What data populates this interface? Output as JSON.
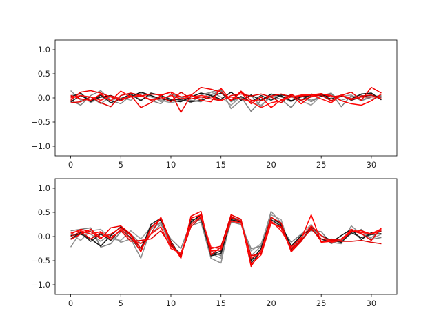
{
  "chart_data": [
    {
      "type": "line",
      "xlim": [
        -1.55,
        32.55
      ],
      "ylim": [
        -1.2,
        1.2
      ],
      "xticks": [
        0,
        5,
        10,
        15,
        20,
        25,
        30
      ],
      "yticks": [
        -1.0,
        -0.5,
        0.0,
        0.5,
        1.0
      ],
      "xtick_labels": [
        "0",
        "5",
        "10",
        "15",
        "20",
        "25",
        "30"
      ],
      "ytick_labels": [
        "−1.0",
        "−0.5",
        "0.0",
        "0.5",
        "1.0"
      ],
      "x": [
        0,
        1,
        2,
        3,
        4,
        5,
        6,
        7,
        8,
        9,
        10,
        11,
        12,
        13,
        14,
        15,
        16,
        17,
        18,
        19,
        20,
        21,
        22,
        23,
        24,
        25,
        26,
        27,
        28,
        29,
        30,
        31
      ],
      "series": [
        {
          "color": "#808080",
          "values": [
            0.15,
            -0.05,
            0.02,
            -0.12,
            0.03,
            -0.05,
            0.08,
            -0.04,
            0.06,
            -0.08,
            0.05,
            0.01,
            -0.1,
            0.06,
            0.12,
            0.18,
            -0.22,
            -0.05,
            0.05,
            -0.18,
            0.08,
            0.02,
            -0.08,
            0.06,
            -0.05,
            0.03,
            0.08,
            -0.05,
            0.02,
            0.06,
            -0.03,
            0.04
          ]
        },
        {
          "color": "#707070",
          "values": [
            -0.05,
            -0.15,
            0.05,
            0.15,
            -0.05,
            -0.12,
            0.05,
            0.06,
            -0.05,
            -0.12,
            0.08,
            0.02,
            -0.05,
            -0.08,
            0.06,
            0.15,
            -0.08,
            0.02,
            -0.28,
            -0.05,
            0.04,
            -0.03,
            -0.2,
            0.05,
            -0.08,
            0.04,
            0.1,
            -0.18,
            0.05,
            -0.06,
            0.02,
            0.05
          ]
        },
        {
          "color": "#909090",
          "values": [
            0.05,
            0.08,
            -0.1,
            0.02,
            -0.06,
            0.02,
            -0.05,
            0.1,
            0.02,
            -0.05,
            -0.1,
            -0.05,
            0.06,
            -0.03,
            0.12,
            0.02,
            -0.15,
            0.03,
            -0.1,
            -0.15,
            0.02,
            0.06,
            0.02,
            -0.06,
            -0.15,
            0.05,
            -0.06,
            0.03,
            0.06,
            -0.05,
            0.05,
            -0.03
          ]
        },
        {
          "color": "#111111",
          "values": [
            -0.08,
            0.05,
            -0.06,
            0.02,
            0.05,
            -0.03,
            0.02,
            0.12,
            0.05,
            -0.02,
            -0.05,
            -0.08,
            0.02,
            0.1,
            0.05,
            -0.03,
            0.12,
            -0.05,
            0.06,
            -0.05,
            0.08,
            0.04,
            -0.06,
            0.02,
            0.05,
            0.06,
            0.02,
            0.04,
            -0.02,
            0.08,
            0.1,
            -0.04
          ]
        },
        {
          "color": "#222222",
          "values": [
            0.02,
            0.1,
            -0.08,
            0.06,
            -0.1,
            -0.02,
            0.08,
            -0.06,
            0.1,
            0.05,
            -0.03,
            -0.04,
            -0.08,
            -0.05,
            0.02,
            0.1,
            -0.05,
            0.03,
            -0.08,
            0.05,
            -0.05,
            0.06,
            0.04,
            -0.05,
            0.08,
            0.04,
            -0.02,
            0.06,
            -0.05,
            0.02,
            0.06,
            0.01
          ]
        },
        {
          "color": "#ee0000",
          "values": [
            -0.05,
            0.12,
            0.15,
            0.1,
            0.02,
            -0.06,
            0.05,
            -0.2,
            -0.1,
            0.05,
            0.12,
            -0.3,
            0.05,
            0.22,
            0.18,
            0.12,
            -0.05,
            0.14,
            -0.05,
            -0.06,
            0.04,
            0.08,
            0.02,
            0.04,
            0.06,
            0.09,
            0.02,
            0.05,
            0.12,
            -0.05,
            0.22,
            0.1
          ]
        },
        {
          "color": "#ff0000",
          "values": [
            0.05,
            -0.02,
            -0.05,
            0.08,
            -0.06,
            0.14,
            0.02,
            0.04,
            0.08,
            0.06,
            0.12,
            0.02,
            0.06,
            -0.05,
            -0.08,
            0.2,
            -0.06,
            0.12,
            -0.12,
            0.02,
            -0.2,
            -0.04,
            0.06,
            -0.12,
            0.04,
            0.08,
            0.05,
            -0.06,
            -0.12,
            -0.15,
            -0.06,
            0.08
          ]
        },
        {
          "color": "#dd0000",
          "values": [
            -0.1,
            -0.08,
            0.02,
            -0.1,
            -0.18,
            0.05,
            0.1,
            0.05,
            -0.05,
            0.02,
            -0.08,
            0.12,
            -0.02,
            0.02,
            -0.02,
            -0.06,
            0.05,
            0.08,
            0.04,
            0.08,
            0.02,
            -0.1,
            0.08,
            -0.05,
            0.02,
            0.06,
            -0.06,
            0.05,
            -0.04,
            0.04,
            0.06,
            -0.02
          ]
        },
        {
          "color": "#ff1010",
          "values": [
            0.0,
            0.05,
            0.02,
            -0.05,
            0.04,
            -0.02,
            0.02,
            0.06,
            -0.04,
            -0.02,
            0.05,
            -0.02,
            0.02,
            0.05,
            0.02,
            -0.05,
            0.02,
            -0.02,
            -0.08,
            -0.2,
            -0.1,
            -0.06,
            0.02,
            0.06,
            0.06,
            -0.02,
            -0.1,
            0.06,
            -0.02,
            0.02,
            0.02,
            0.02
          ]
        }
      ]
    },
    {
      "type": "line",
      "xlim": [
        -1.55,
        32.55
      ],
      "ylim": [
        -1.2,
        1.2
      ],
      "xticks": [
        0,
        5,
        10,
        15,
        20,
        25,
        30
      ],
      "yticks": [
        -1.0,
        -0.5,
        0.0,
        0.5,
        1.0
      ],
      "xtick_labels": [
        "0",
        "5",
        "10",
        "15",
        "20",
        "25",
        "30"
      ],
      "ytick_labels": [
        "−1.0",
        "−0.5",
        "0.0",
        "0.5",
        "1.0"
      ],
      "x": [
        0,
        1,
        2,
        3,
        4,
        5,
        6,
        7,
        8,
        9,
        10,
        11,
        12,
        13,
        14,
        15,
        16,
        17,
        18,
        19,
        20,
        21,
        22,
        23,
        24,
        25,
        26,
        27,
        28,
        29,
        30,
        31
      ],
      "series": [
        {
          "color": "#808080",
          "values": [
            -0.22,
            0.1,
            0.05,
            -0.1,
            0.05,
            -0.12,
            -0.05,
            -0.45,
            0.15,
            0.28,
            -0.2,
            -0.35,
            0.22,
            0.3,
            -0.45,
            -0.55,
            0.4,
            0.35,
            -0.4,
            -0.2,
            0.52,
            0.28,
            -0.25,
            -0.05,
            0.15,
            0.02,
            -0.12,
            -0.15,
            0.22,
            0.05,
            -0.02,
            0.12
          ]
        },
        {
          "color": "#707070",
          "values": [
            0.12,
            0.15,
            0.18,
            -0.22,
            -0.15,
            0.1,
            0.05,
            -0.15,
            0.05,
            0.25,
            -0.05,
            -0.25,
            0.3,
            0.35,
            -0.3,
            -0.4,
            0.3,
            0.25,
            -0.25,
            -0.2,
            0.35,
            0.2,
            -0.12,
            0.05,
            0.12,
            0.1,
            -0.15,
            -0.05,
            0.05,
            0.15,
            -0.06,
            -0.02
          ]
        },
        {
          "color": "#909090",
          "values": [
            0.05,
            -0.08,
            0.12,
            0.15,
            -0.05,
            -0.08,
            0.12,
            -0.05,
            0.18,
            0.3,
            -0.15,
            -0.38,
            0.25,
            0.4,
            -0.35,
            -0.45,
            0.35,
            0.3,
            -0.3,
            -0.15,
            0.45,
            0.35,
            -0.3,
            0.05,
            0.25,
            -0.1,
            -0.05,
            -0.08,
            0.1,
            0.12,
            -0.05,
            0.05
          ]
        },
        {
          "color": "#111111",
          "values": [
            0.02,
            0.05,
            -0.05,
            -0.2,
            0.02,
            0.2,
            0.02,
            -0.25,
            0.2,
            0.35,
            -0.15,
            -0.4,
            0.3,
            0.45,
            -0.4,
            -0.35,
            0.35,
            0.3,
            -0.5,
            -0.25,
            0.4,
            0.25,
            -0.2,
            0.02,
            0.15,
            -0.05,
            -0.12,
            0.02,
            0.15,
            -0.06,
            0.08,
            0.1
          ]
        },
        {
          "color": "#222222",
          "values": [
            -0.05,
            0.08,
            -0.1,
            0.05,
            -0.08,
            0.15,
            -0.03,
            -0.3,
            0.25,
            0.38,
            -0.1,
            -0.42,
            0.35,
            0.38,
            -0.38,
            -0.3,
            0.38,
            0.32,
            -0.55,
            -0.3,
            0.35,
            0.22,
            -0.28,
            -0.1,
            0.2,
            0.02,
            -0.08,
            -0.12,
            0.08,
            -0.02,
            0.04,
            0.06
          ]
        },
        {
          "color": "#ee0000",
          "values": [
            0.05,
            0.15,
            0.1,
            -0.05,
            0.18,
            0.22,
            0.05,
            -0.25,
            0.05,
            0.4,
            -0.12,
            -0.45,
            0.42,
            0.52,
            -0.38,
            -0.22,
            0.45,
            0.36,
            -0.62,
            -0.3,
            0.4,
            0.28,
            -0.32,
            -0.1,
            0.18,
            -0.1,
            -0.08,
            -0.05,
            0.12,
            0.06,
            -0.08,
            0.18
          ]
        },
        {
          "color": "#ff0000",
          "values": [
            -0.06,
            0.05,
            0.15,
            -0.02,
            0.05,
            0.18,
            0.02,
            -0.32,
            0.18,
            0.38,
            -0.18,
            -0.42,
            0.38,
            0.45,
            -0.3,
            -0.28,
            0.4,
            0.32,
            -0.58,
            -0.38,
            0.28,
            0.2,
            -0.3,
            -0.05,
            0.45,
            -0.12,
            -0.1,
            -0.08,
            0.1,
            0.12,
            0.05,
            0.12
          ]
        },
        {
          "color": "#dd0000",
          "values": [
            0.0,
            0.1,
            -0.05,
            0.08,
            -0.02,
            0.12,
            -0.1,
            -0.08,
            -0.05,
            0.12,
            -0.2,
            -0.38,
            0.2,
            0.4,
            -0.25,
            -0.2,
            0.42,
            0.3,
            -0.4,
            -0.35,
            0.3,
            0.18,
            -0.25,
            -0.08,
            0.15,
            -0.05,
            -0.06,
            -0.1,
            -0.1,
            -0.08,
            -0.12,
            -0.15
          ]
        },
        {
          "color": "#ff1010",
          "values": [
            0.08,
            0.12,
            0.05,
            0.1,
            -0.06,
            0.15,
            -0.05,
            -0.15,
            0.05,
            0.2,
            -0.25,
            -0.35,
            0.25,
            0.42,
            -0.22,
            -0.25,
            0.32,
            0.28,
            -0.45,
            -0.32,
            0.32,
            0.12,
            -0.22,
            -0.02,
            0.22,
            0.02,
            -0.12,
            -0.08,
            0.15,
            0.08,
            0.06,
            0.16
          ]
        }
      ]
    }
  ]
}
